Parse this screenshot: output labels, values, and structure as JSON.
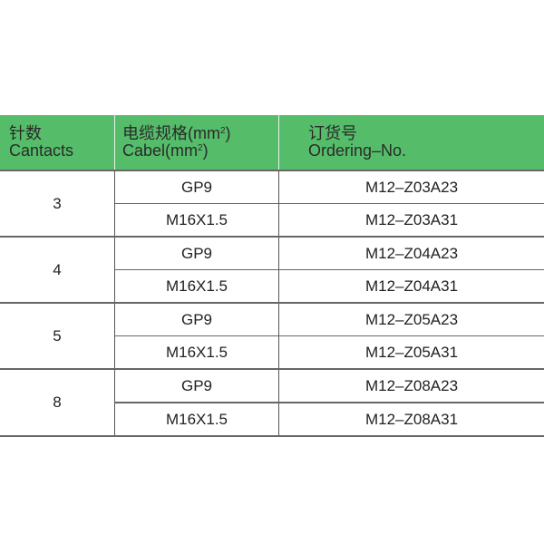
{
  "header": {
    "contacts_cn": "针数",
    "contacts_en": "Cantacts",
    "cable_cn": "电缆规格(mm",
    "cable_en": "Cabel(mm",
    "sup": "2",
    "close": ")",
    "order_cn": "订货号",
    "order_en": "Ordering–No."
  },
  "colors": {
    "header_bg": "#55bd6a"
  },
  "groups": [
    {
      "contacts": "3",
      "rows": [
        {
          "cable": "GP9",
          "order": "M12–Z03A23"
        },
        {
          "cable": "M16X1.5",
          "order": "M12–Z03A31"
        }
      ]
    },
    {
      "contacts": "4",
      "rows": [
        {
          "cable": "GP9",
          "order": "M12–Z04A23"
        },
        {
          "cable": "M16X1.5",
          "order": "M12–Z04A31"
        }
      ]
    },
    {
      "contacts": "5",
      "rows": [
        {
          "cable": "GP9",
          "order": "M12–Z05A23"
        },
        {
          "cable": "M16X1.5",
          "order": "M12–Z05A31"
        }
      ]
    },
    {
      "contacts": "8",
      "rows": [
        {
          "cable": "GP9",
          "order": "M12–Z08A23"
        },
        {
          "cable": "M16X1.5",
          "order": "M12–Z08A31"
        }
      ]
    }
  ]
}
